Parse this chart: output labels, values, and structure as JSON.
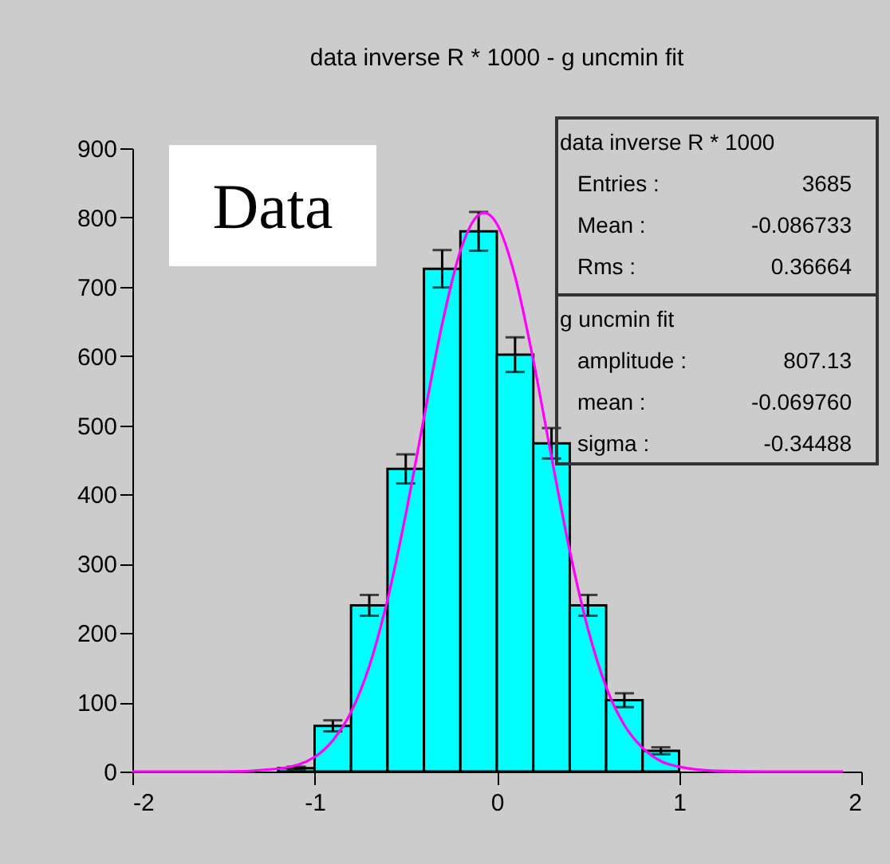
{
  "chart_data": {
    "type": "histogram",
    "title": "data inverse R * 1000 - g uncmin fit",
    "xlim": [
      -2,
      2
    ],
    "xticks": [
      -2,
      -1,
      0,
      1,
      2
    ],
    "ylim": [
      0,
      900
    ],
    "yticks": [
      0,
      100,
      200,
      300,
      400,
      500,
      600,
      700,
      800,
      900
    ],
    "series": [
      {
        "color": "#00ffff",
        "bins": [
          -1.2,
          -1.0,
          -0.8,
          -0.6,
          -0.4,
          -0.2,
          0,
          0.2,
          0.4,
          0.6,
          0.8,
          1.0
        ],
        "values": [
          5,
          66,
          240,
          437,
          726,
          780,
          602,
          474,
          240,
          103,
          30
        ],
        "errors": [
          2,
          8,
          15,
          21,
          27,
          28,
          25,
          22,
          15,
          10,
          5
        ]
      },
      {
        "type": "line",
        "color": "#ff00ff",
        "x": [
          -2,
          -1.5,
          -1.2,
          -1.0,
          -0.9,
          -0.8,
          -0.7,
          -0.6,
          -0.5,
          -0.4,
          -0.3,
          -0.2,
          -0.1,
          -0.07,
          0,
          0.1,
          0.2,
          0.3,
          0.4,
          0.5,
          0.6,
          0.7,
          0.8,
          0.9,
          1.0,
          1.2,
          1.5,
          1.9
        ],
        "values": [
          0,
          0,
          4,
          21,
          45,
          86,
          152,
          248,
          371,
          511,
          646,
          752,
          804,
          807,
          791,
          715,
          594,
          454,
          319,
          206,
          122,
          67,
          34,
          15,
          7,
          1,
          0,
          0
        ]
      }
    ],
    "annotations": [
      "Data",
      "data inverse R * 1000",
      "Entries :",
      "3685",
      "Mean :",
      "-0.086733",
      "Rms :",
      "0.36664",
      "g uncmin fit",
      "amplitude :",
      "807.13",
      "mean :",
      "-0.069760",
      "sigma :",
      "-0.34488"
    ]
  }
}
